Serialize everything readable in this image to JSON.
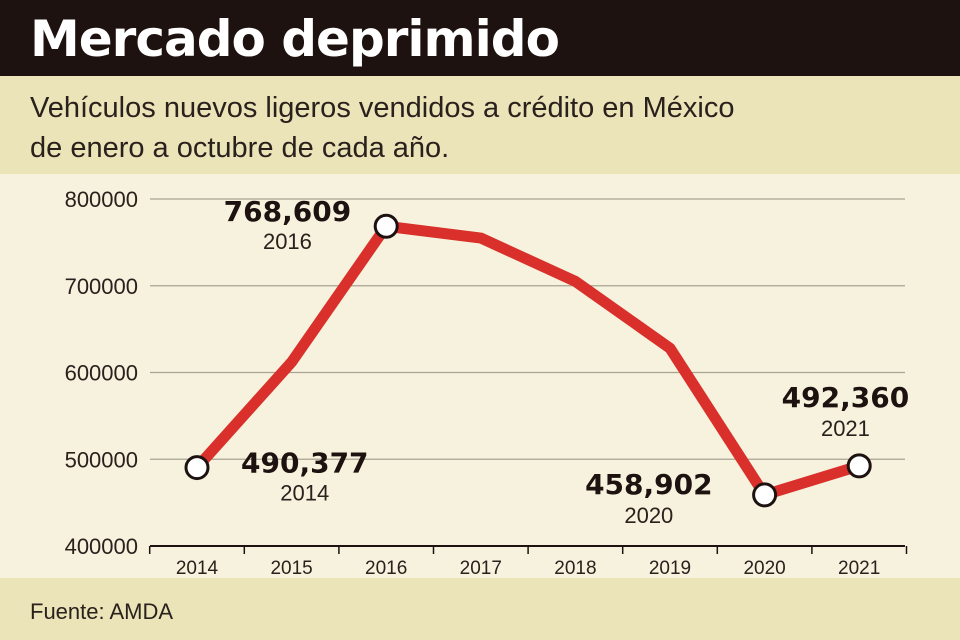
{
  "header": {
    "title": "Mercado deprimido",
    "subtitle_line1": "Vehículos nuevos ligeros vendidos a crédito en México",
    "subtitle_line2": "de enero a octubre de cada año."
  },
  "footer": {
    "source": "Fuente: AMDA"
  },
  "colors": {
    "line": "#d9302c",
    "background": "#f6f2de",
    "header_bg": "#1d120f",
    "subtitle_bg": "#ebe4b8"
  },
  "chart_data": {
    "type": "line",
    "categories": [
      "2014",
      "2015",
      "2016",
      "2017",
      "2018",
      "2019",
      "2020",
      "2021"
    ],
    "values": [
      490377,
      612000,
      768609,
      755000,
      705000,
      628000,
      458902,
      492360
    ],
    "ylim": [
      400000,
      800000
    ],
    "yticks": [
      "800000",
      "700000",
      "600000",
      "500000",
      "400000"
    ],
    "grid": true,
    "annotations": [
      {
        "index": 2,
        "value_label": "768,609",
        "year_label": "2016"
      },
      {
        "index": 0,
        "value_label": "490,377",
        "year_label": "2014"
      },
      {
        "index": 6,
        "value_label": "458,902",
        "year_label": "2020"
      },
      {
        "index": 7,
        "value_label": "492,360",
        "year_label": "2021"
      }
    ]
  }
}
